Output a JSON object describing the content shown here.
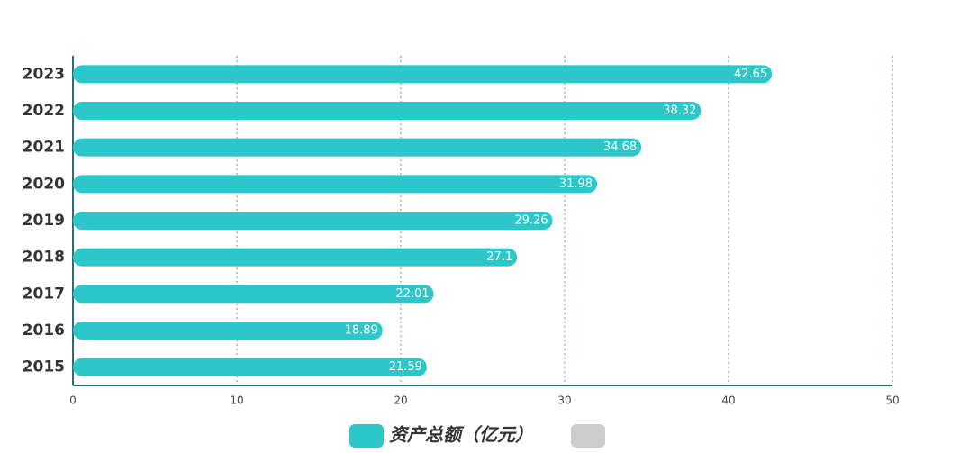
{
  "chart_data": {
    "type": "barh",
    "categories": [
      "2015",
      "2016",
      "2017",
      "2018",
      "2019",
      "2020",
      "2021",
      "2022",
      "2023"
    ],
    "series": [
      {
        "name": "资产总额（亿元）",
        "color": "#2ec7c9",
        "values": [
          21.59,
          18.89,
          22.01,
          27.1,
          29.26,
          31.98,
          34.68,
          38.32,
          42.65
        ]
      }
    ],
    "xlim": [
      0,
      50
    ],
    "xticks": [
      0,
      10,
      20,
      30,
      40,
      50
    ],
    "grid": true
  }
}
